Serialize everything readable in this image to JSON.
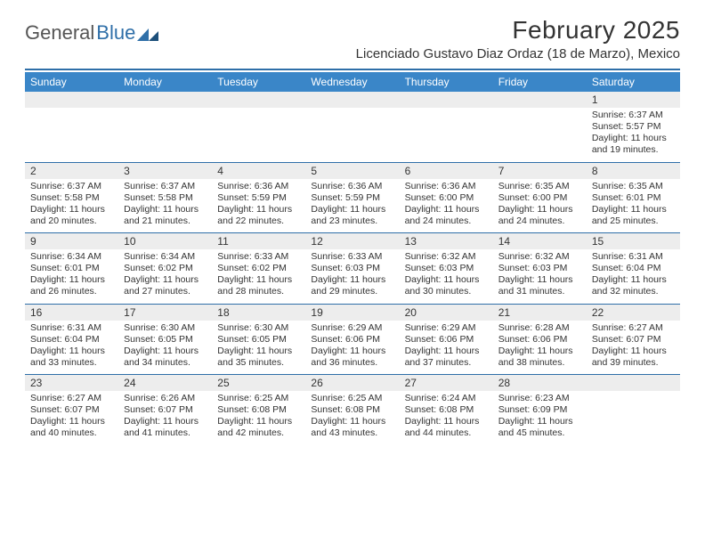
{
  "brand": {
    "part1": "General",
    "part2": "Blue"
  },
  "title": "February 2025",
  "location": "Licenciado Gustavo Diaz Ordaz (18 de Marzo), Mexico",
  "colors": {
    "header_bg": "#3a86c8",
    "rule": "#2f6fa8",
    "daynum_bg": "#ededed",
    "text": "#333333",
    "bg": "#ffffff"
  },
  "day_names": [
    "Sunday",
    "Monday",
    "Tuesday",
    "Wednesday",
    "Thursday",
    "Friday",
    "Saturday"
  ],
  "weeks": [
    {
      "nums": [
        "",
        "",
        "",
        "",
        "",
        "",
        "1"
      ],
      "infos": [
        "",
        "",
        "",
        "",
        "",
        "",
        "Sunrise: 6:37 AM\nSunset: 5:57 PM\nDaylight: 11 hours and 19 minutes."
      ]
    },
    {
      "nums": [
        "2",
        "3",
        "4",
        "5",
        "6",
        "7",
        "8"
      ],
      "infos": [
        "Sunrise: 6:37 AM\nSunset: 5:58 PM\nDaylight: 11 hours and 20 minutes.",
        "Sunrise: 6:37 AM\nSunset: 5:58 PM\nDaylight: 11 hours and 21 minutes.",
        "Sunrise: 6:36 AM\nSunset: 5:59 PM\nDaylight: 11 hours and 22 minutes.",
        "Sunrise: 6:36 AM\nSunset: 5:59 PM\nDaylight: 11 hours and 23 minutes.",
        "Sunrise: 6:36 AM\nSunset: 6:00 PM\nDaylight: 11 hours and 24 minutes.",
        "Sunrise: 6:35 AM\nSunset: 6:00 PM\nDaylight: 11 hours and 24 minutes.",
        "Sunrise: 6:35 AM\nSunset: 6:01 PM\nDaylight: 11 hours and 25 minutes."
      ]
    },
    {
      "nums": [
        "9",
        "10",
        "11",
        "12",
        "13",
        "14",
        "15"
      ],
      "infos": [
        "Sunrise: 6:34 AM\nSunset: 6:01 PM\nDaylight: 11 hours and 26 minutes.",
        "Sunrise: 6:34 AM\nSunset: 6:02 PM\nDaylight: 11 hours and 27 minutes.",
        "Sunrise: 6:33 AM\nSunset: 6:02 PM\nDaylight: 11 hours and 28 minutes.",
        "Sunrise: 6:33 AM\nSunset: 6:03 PM\nDaylight: 11 hours and 29 minutes.",
        "Sunrise: 6:32 AM\nSunset: 6:03 PM\nDaylight: 11 hours and 30 minutes.",
        "Sunrise: 6:32 AM\nSunset: 6:03 PM\nDaylight: 11 hours and 31 minutes.",
        "Sunrise: 6:31 AM\nSunset: 6:04 PM\nDaylight: 11 hours and 32 minutes."
      ]
    },
    {
      "nums": [
        "16",
        "17",
        "18",
        "19",
        "20",
        "21",
        "22"
      ],
      "infos": [
        "Sunrise: 6:31 AM\nSunset: 6:04 PM\nDaylight: 11 hours and 33 minutes.",
        "Sunrise: 6:30 AM\nSunset: 6:05 PM\nDaylight: 11 hours and 34 minutes.",
        "Sunrise: 6:30 AM\nSunset: 6:05 PM\nDaylight: 11 hours and 35 minutes.",
        "Sunrise: 6:29 AM\nSunset: 6:06 PM\nDaylight: 11 hours and 36 minutes.",
        "Sunrise: 6:29 AM\nSunset: 6:06 PM\nDaylight: 11 hours and 37 minutes.",
        "Sunrise: 6:28 AM\nSunset: 6:06 PM\nDaylight: 11 hours and 38 minutes.",
        "Sunrise: 6:27 AM\nSunset: 6:07 PM\nDaylight: 11 hours and 39 minutes."
      ]
    },
    {
      "nums": [
        "23",
        "24",
        "25",
        "26",
        "27",
        "28",
        ""
      ],
      "infos": [
        "Sunrise: 6:27 AM\nSunset: 6:07 PM\nDaylight: 11 hours and 40 minutes.",
        "Sunrise: 6:26 AM\nSunset: 6:07 PM\nDaylight: 11 hours and 41 minutes.",
        "Sunrise: 6:25 AM\nSunset: 6:08 PM\nDaylight: 11 hours and 42 minutes.",
        "Sunrise: 6:25 AM\nSunset: 6:08 PM\nDaylight: 11 hours and 43 minutes.",
        "Sunrise: 6:24 AM\nSunset: 6:08 PM\nDaylight: 11 hours and 44 minutes.",
        "Sunrise: 6:23 AM\nSunset: 6:09 PM\nDaylight: 11 hours and 45 minutes.",
        ""
      ]
    }
  ]
}
